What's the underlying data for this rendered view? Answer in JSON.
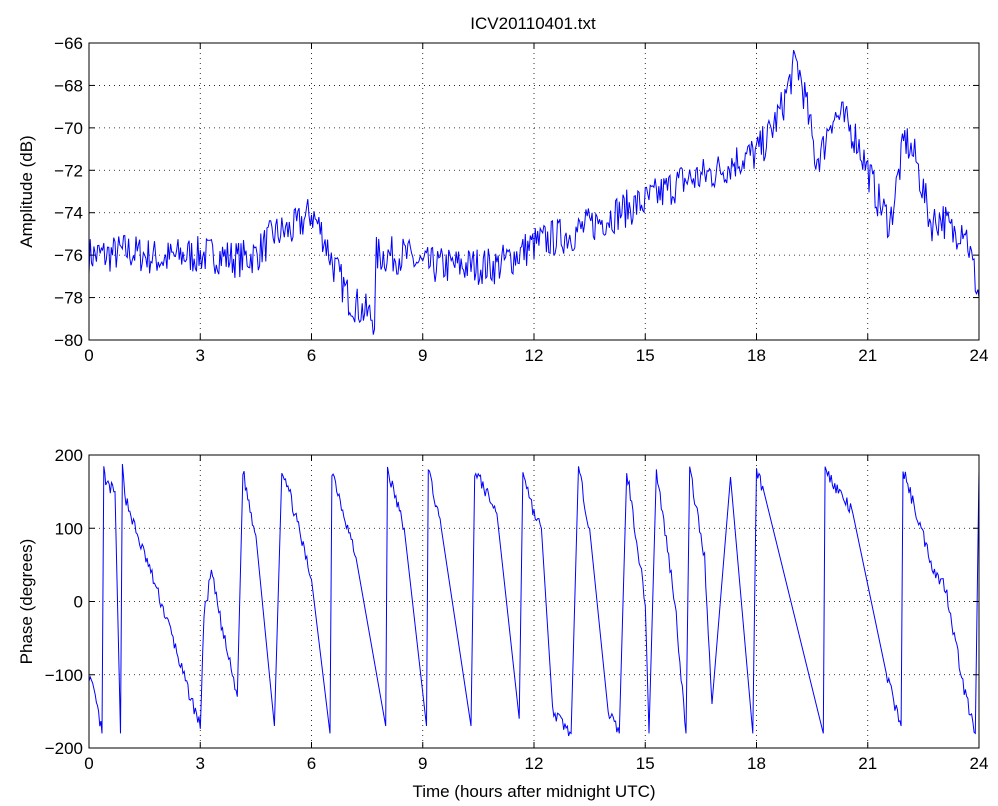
{
  "figure": {
    "title": "ICV20110401.txt"
  },
  "colors": {
    "series": "#0000ff",
    "axes": "#000000",
    "grid": "#000000",
    "background": "#ffffff"
  },
  "chart_data": [
    {
      "type": "line",
      "title": "ICV20110401.txt",
      "xlabel": "",
      "ylabel": "Amplitude (dB)",
      "xlim": [
        0,
        24
      ],
      "ylim": [
        -80,
        -66
      ],
      "xticks": [
        0,
        3,
        6,
        9,
        12,
        15,
        18,
        21,
        24
      ],
      "yticks": [
        -80,
        -78,
        -76,
        -74,
        -72,
        -70,
        -68,
        -66
      ],
      "grid": true,
      "series": [
        {
          "x": [
            0,
            0.5,
            1,
            1.5,
            2,
            2.5,
            3,
            3.5,
            4,
            4.5,
            5,
            5.5,
            6,
            6.3,
            6.6,
            7,
            7.3,
            7.7,
            7.75,
            8,
            8.5,
            9,
            9.5,
            10,
            10.5,
            11,
            11.5,
            12,
            12.5,
            13,
            13.5,
            14,
            14.5,
            15,
            15.5,
            16,
            16.5,
            17,
            17.5,
            18,
            18.3,
            18.7,
            19,
            19.1,
            19.3,
            19.6,
            19.8,
            20,
            20.3,
            20.7,
            21,
            21.3,
            21.6,
            22,
            22.3,
            22.7,
            23,
            23.3,
            23.6,
            24
          ],
          "values": [
            -76,
            -76,
            -75.8,
            -76,
            -76.2,
            -76,
            -76,
            -76,
            -76.2,
            -76,
            -75,
            -74.8,
            -74,
            -75,
            -76.5,
            -78,
            -78.5,
            -79,
            -76,
            -76,
            -76,
            -76.5,
            -76.5,
            -76.5,
            -76.5,
            -76.5,
            -76,
            -75.5,
            -75.2,
            -75,
            -74.6,
            -74.2,
            -73.8,
            -73.5,
            -73,
            -72.5,
            -72.3,
            -72,
            -71.5,
            -71.2,
            -70.5,
            -69,
            -67.2,
            -67,
            -68.5,
            -71.5,
            -71,
            -69.5,
            -69.5,
            -70.5,
            -72,
            -73.5,
            -74.5,
            -70.5,
            -71.5,
            -74.5,
            -74.2,
            -75,
            -74.5,
            -78
          ]
        }
      ]
    },
    {
      "type": "line",
      "title": "",
      "xlabel": "Time (hours after midnight UTC)",
      "ylabel": "Phase (degrees)",
      "xlim": [
        0,
        24
      ],
      "ylim": [
        -200,
        200
      ],
      "xticks": [
        0,
        3,
        6,
        9,
        12,
        15,
        18,
        21,
        24
      ],
      "yticks": [
        -200,
        -100,
        0,
        100,
        200
      ],
      "grid": true,
      "series": [
        {
          "x": [
            0,
            0.2,
            0.35,
            0.4,
            0.45,
            0.7,
            0.85,
            0.9,
            1,
            1.3,
            1.6,
            1.8,
            2.2,
            2.6,
            3,
            3.1,
            3.3,
            3.6,
            4,
            4.15,
            4.25,
            4.5,
            5,
            5.2,
            5.3,
            6,
            6.5,
            6.55,
            7.2,
            8,
            8.05,
            8.5,
            9.1,
            9.15,
            9.5,
            10.3,
            10.4,
            11,
            11.6,
            11.7,
            12,
            12.2,
            12.5,
            13,
            13.2,
            13.5,
            14,
            14.3,
            14.5,
            15,
            15.1,
            15.3,
            15.8,
            16.1,
            16.2,
            16.6,
            16.8,
            17.3,
            17.9,
            18,
            18.2,
            19.8,
            19.85,
            20.6,
            21.5,
            21.9,
            21.95,
            22.8,
            23.1,
            23.6,
            23.9,
            24
          ],
          "values": [
            -100,
            -140,
            -180,
            180,
            160,
            150,
            -180,
            180,
            140,
            90,
            50,
            20,
            -40,
            -110,
            -170,
            -20,
            40,
            -40,
            -130,
            180,
            150,
            90,
            -170,
            180,
            170,
            30,
            -180,
            180,
            60,
            -170,
            180,
            100,
            -170,
            180,
            100,
            -170,
            180,
            120,
            -160,
            180,
            120,
            100,
            -150,
            -180,
            180,
            100,
            -150,
            -180,
            180,
            0,
            -180,
            180,
            0,
            -180,
            180,
            60,
            -140,
            170,
            -180,
            180,
            150,
            -180,
            180,
            120,
            -100,
            -170,
            180,
            40,
            20,
            -120,
            -180,
            180
          ]
        }
      ]
    }
  ]
}
